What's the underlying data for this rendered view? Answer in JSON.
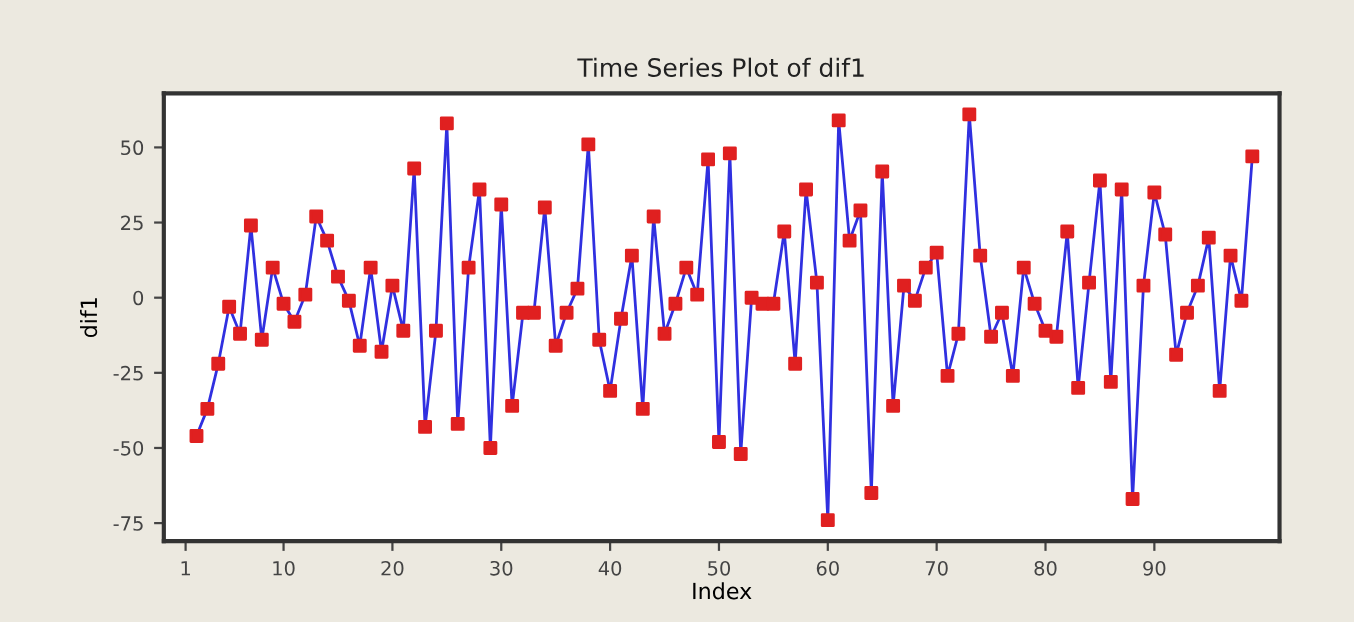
{
  "chart_data": {
    "type": "line",
    "title": "Time Series Plot of dif1",
    "xlabel": "Index",
    "ylabel": "dif1",
    "x": [
      2,
      3,
      4,
      5,
      6,
      7,
      8,
      9,
      10,
      11,
      12,
      13,
      14,
      15,
      16,
      17,
      18,
      19,
      20,
      21,
      22,
      23,
      24,
      25,
      26,
      27,
      28,
      29,
      30,
      31,
      32,
      33,
      34,
      35,
      36,
      37,
      38,
      39,
      40,
      41,
      42,
      43,
      44,
      45,
      46,
      47,
      48,
      49,
      50,
      51,
      52,
      53,
      54,
      55,
      56,
      57,
      58,
      59,
      60,
      61,
      62,
      63,
      64,
      65,
      66,
      67,
      68,
      69,
      70,
      71,
      72,
      73,
      74,
      75,
      76,
      77,
      78,
      79,
      80,
      81,
      82,
      83,
      84,
      85,
      86,
      87,
      88,
      89,
      90,
      91,
      92,
      93,
      94,
      95,
      96,
      97,
      98,
      99
    ],
    "series": [
      {
        "color": "#3030e0",
        "colors": [
          "#e02020",
          "#e02020",
          "#e02020",
          "#e02020",
          "#e02020",
          "#e02020",
          "#e02020",
          "#e02020",
          "#e02020",
          "#e02020",
          "#e02020",
          "#e02020",
          "#e02020",
          "#e02020",
          "#e02020",
          "#e02020",
          "#e02020",
          "#e02020",
          "#e02020",
          "#e02020",
          "#e02020",
          "#e02020",
          "#e02020",
          "#e02020",
          "#e02020",
          "#e02020",
          "#e02020",
          "#e02020",
          "#e02020",
          "#e02020",
          "#e02020",
          "#e02020",
          "#e02020",
          "#e02020",
          "#e02020",
          "#e02020",
          "#e02020",
          "#e02020",
          "#e02020",
          "#e02020",
          "#e02020",
          "#e02020",
          "#e02020",
          "#e02020",
          "#e02020",
          "#e02020",
          "#e02020",
          "#e02020",
          "#e02020",
          "#e02020",
          "#e02020",
          "#e02020",
          "#e02020",
          "#e02020",
          "#e02020",
          "#e02020",
          "#e02020",
          "#e02020",
          "#e02020",
          "#e02020",
          "#e02020",
          "#e02020",
          "#e02020",
          "#e02020",
          "#e02020",
          "#e02020",
          "#e02020",
          "#e02020",
          "#e02020",
          "#e02020",
          "#e02020",
          "#e02020",
          "#e02020",
          "#e02020",
          "#e02020",
          "#e02020",
          "#e02020",
          "#e02020",
          "#e02020",
          "#e02020",
          "#e02020",
          "#e02020",
          "#e02020",
          "#e02020",
          "#e02020",
          "#e02020",
          "#e02020",
          "#e02020",
          "#e02020",
          "#e02020",
          "#e02020",
          "#e02020",
          "#e02020",
          "#e02020",
          "#e02020",
          "#e02020",
          "#e02020",
          "#e02020"
        ],
        "values": [
          -46,
          -37,
          -22,
          -3,
          -12,
          24,
          -14,
          10,
          -2,
          -8,
          1,
          27,
          19,
          7,
          -1,
          -16,
          10,
          -18,
          4,
          -11,
          43,
          -43,
          -11,
          58,
          -42,
          10,
          36,
          -50,
          31,
          -36,
          -5,
          -5,
          30,
          -16,
          -5,
          3,
          51,
          -14,
          -31,
          -7,
          14,
          -37,
          27,
          -12,
          -2,
          10,
          1,
          46,
          -48,
          48,
          -52,
          0,
          -2,
          -2,
          22,
          -22,
          36,
          5,
          -74,
          59,
          19,
          29,
          -65,
          42,
          -36,
          4,
          -1,
          10,
          15,
          -26,
          -12,
          61,
          14,
          -13,
          -5,
          -26,
          10,
          -2,
          -11,
          -13,
          22,
          -30,
          5,
          39,
          -28,
          36,
          -67,
          4,
          35,
          21,
          -19,
          -5,
          4,
          20,
          -31,
          14,
          -1,
          47
        ]
      }
    ],
    "marker": "square",
    "line_style": "solid",
    "xlim": [
      -1,
      101.5
    ],
    "xticks": [
      1,
      10,
      20,
      30,
      40,
      50,
      60,
      70,
      80,
      90
    ],
    "ylim": [
      -81,
      68
    ],
    "yticks": [
      50,
      25,
      0,
      -25,
      -50,
      -75
    ],
    "grid": false,
    "legend": false
  }
}
